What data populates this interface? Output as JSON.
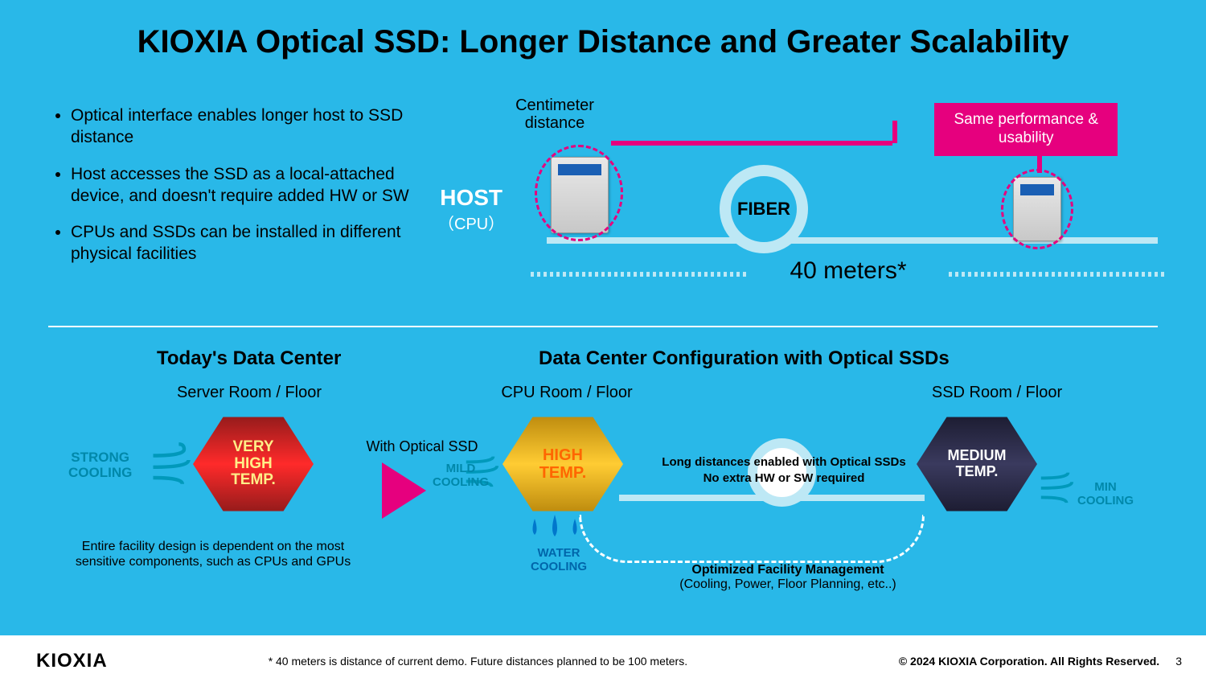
{
  "title": "KIOXIA Optical SSD:  Longer Distance and Greater Scalability",
  "bullets": [
    "Optical interface enables longer host to SSD distance",
    "Host accesses the SSD as a local-attached device, and doesn't require added HW or SW",
    "CPUs and SSDs can be installed in different physical facilities"
  ],
  "top_diagram": {
    "centimeter_label": "Centimeter distance",
    "host_label": "HOST",
    "host_sub": "（CPU）",
    "fiber_label": "FIBER",
    "distance_label": "40 meters*",
    "perf_box": "Same performance & usability",
    "colors": {
      "fiber_line": "#bde8f5",
      "highlight": "#e6007e",
      "bg": "#29b8e8"
    }
  },
  "divider_color": "#ffffff",
  "today": {
    "title": "Today's Data Center",
    "room": "Server Room / Floor",
    "cooling_label": "STRONG COOLING",
    "cooling_color": "#0088aa",
    "hex_text": "VERY HIGH TEMP.",
    "hex_bg": "linear-gradient(#8b1a1a,#ff2a2a,#8b1a1a)",
    "hex_color": "#ffcc00",
    "note": "Entire facility design is dependent on the most sensitive components, such as CPUs and GPUs",
    "transition_label": "With Optical SSD"
  },
  "optical": {
    "title": "Data Center Configuration with Optical SSDs",
    "cpu_room": "CPU Room / Floor",
    "ssd_room": "SSD Room / Floor",
    "mild_label": "MILD COOLING",
    "mild_color": "#0088aa",
    "water_label": "WATER COOLING",
    "water_color": "#0066aa",
    "min_label": "MIN COOLING",
    "min_color": "#0088aa",
    "cpu_hex_text": "HIGH TEMP.",
    "cpu_hex_bg": "linear-gradient(#b8860b,#ffcc33,#b8860b)",
    "cpu_hex_color": "#ff6600",
    "ssd_hex_text": "MEDIUM TEMP.",
    "ssd_hex_bg": "linear-gradient(#1a1a2e,#2a2a4e,#1a1a2e)",
    "ssd_hex_color": "#ffffff",
    "long_distance": "Long distances enabled with Optical SSDs\nNo extra HW or SW required",
    "opt_mgmt_bold": "Optimized Facility Management",
    "opt_mgmt_sub": "(Cooling, Power, Floor Planning, etc..)"
  },
  "footer": {
    "logo": "KIOXIA",
    "note": "* 40 meters is distance of current demo. Future distances planned to be 100 meters.",
    "copyright": "© 2024 KIOXIA Corporation. All Rights Reserved.",
    "page": "3"
  }
}
